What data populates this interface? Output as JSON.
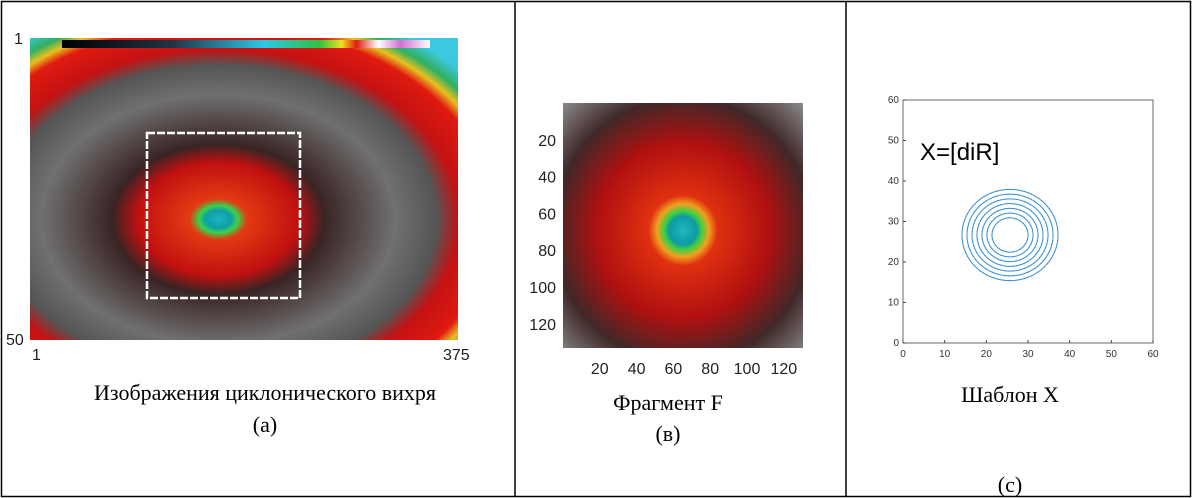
{
  "panels": [
    {
      "corner_labels": {
        "top_left": 1,
        "bottom_left": 50,
        "x_start": 1,
        "x_end": 375
      },
      "caption": "Изображения циклонического вихря",
      "label": "(a)"
    },
    {
      "yticks": [
        20,
        40,
        60,
        80,
        100,
        120
      ],
      "xticks": [
        20,
        40,
        60,
        80,
        100,
        120
      ],
      "caption": "Фрагмент F",
      "label": "(в)"
    },
    {
      "annotation": "X=[diR]",
      "xlim": [
        0,
        60
      ],
      "ylim": [
        0,
        60
      ],
      "xticks": [
        0,
        10,
        20,
        30,
        40,
        50,
        60
      ],
      "yticks": [
        0,
        10,
        20,
        30,
        40,
        50,
        60
      ],
      "caption": "Шаблон X",
      "label": "(c)"
    }
  ]
}
